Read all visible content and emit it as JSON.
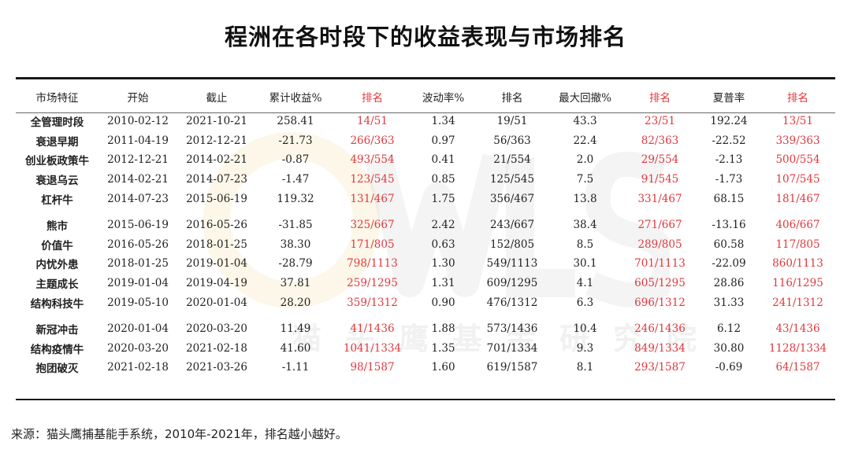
{
  "title": "程洲在各时段下的收益表现与市场排名",
  "watermark_text": "猫头鹰基金研究院",
  "table": {
    "headers": [
      "市场特征",
      "开始",
      "截止",
      "累计收益%",
      "排名",
      "波动率%",
      "排名",
      "最大回撤%",
      "排名",
      "夏普率",
      "排名"
    ],
    "groups": [
      [
        [
          "全管理时段",
          "2010-02-12",
          "2021-10-21",
          "258.41",
          "14/51",
          "1.34",
          "19/51",
          "43.3",
          "23/51",
          "192.24",
          "13/51"
        ],
        [
          "衰退早期",
          "2011-04-19",
          "2012-12-21",
          "-21.73",
          "266/363",
          "0.97",
          "56/363",
          "22.4",
          "82/363",
          "-22.52",
          "339/363"
        ],
        [
          "创业板政策牛",
          "2012-12-21",
          "2014-02-21",
          "-0.87",
          "493/554",
          "0.41",
          "21/554",
          "2.0",
          "29/554",
          "-2.13",
          "500/554"
        ],
        [
          "衰退乌云",
          "2014-02-21",
          "2014-07-23",
          "-1.47",
          "123/545",
          "0.85",
          "125/545",
          "7.5",
          "91/545",
          "-1.73",
          "107/545"
        ],
        [
          "杠杆牛",
          "2014-07-23",
          "2015-06-19",
          "119.32",
          "131/467",
          "1.75",
          "356/467",
          "13.8",
          "331/467",
          "68.15",
          "181/467"
        ]
      ],
      [
        [
          "熊市",
          "2015-06-19",
          "2016-05-26",
          "-31.85",
          "325/667",
          "2.42",
          "243/667",
          "38.4",
          "271/667",
          "-13.16",
          "406/667"
        ],
        [
          "价值牛",
          "2016-05-26",
          "2018-01-25",
          "38.30",
          "171/805",
          "0.63",
          "152/805",
          "8.5",
          "289/805",
          "60.58",
          "117/805"
        ],
        [
          "内忧外患",
          "2018-01-25",
          "2019-01-04",
          "-28.79",
          "798/1113",
          "1.30",
          "549/1113",
          "30.1",
          "701/1113",
          "-22.09",
          "860/1113"
        ],
        [
          "主题成长",
          "2019-01-04",
          "2019-04-19",
          "37.81",
          "259/1295",
          "1.31",
          "609/1295",
          "4.1",
          "605/1295",
          "28.86",
          "116/1295"
        ],
        [
          "结构科技牛",
          "2019-05-10",
          "2020-01-04",
          "28.20",
          "359/1312",
          "0.90",
          "476/1312",
          "6.3",
          "696/1312",
          "31.33",
          "241/1312"
        ]
      ],
      [
        [
          "新冠冲击",
          "2020-01-04",
          "2020-03-20",
          "11.49",
          "41/1436",
          "1.88",
          "573/1436",
          "10.4",
          "246/1436",
          "6.12",
          "43/1436"
        ],
        [
          "结构疫情牛",
          "2020-03-20",
          "2021-02-18",
          "41.60",
          "1041/1334",
          "1.35",
          "701/1334",
          "9.3",
          "849/1334",
          "30.80",
          "1128/1334"
        ],
        [
          "抱团破灭",
          "2021-02-18",
          "2021-03-26",
          "-1.11",
          "98/1587",
          "1.60",
          "619/1587",
          "8.1",
          "293/1587",
          "-0.69",
          "64/1587"
        ]
      ]
    ],
    "rank_color": "#e0393e",
    "red_rank_columns": [
      4,
      8,
      10
    ]
  },
  "source": "来源：猫头鹰捕基能手系统，2010年-2021年，排名越小越好。"
}
